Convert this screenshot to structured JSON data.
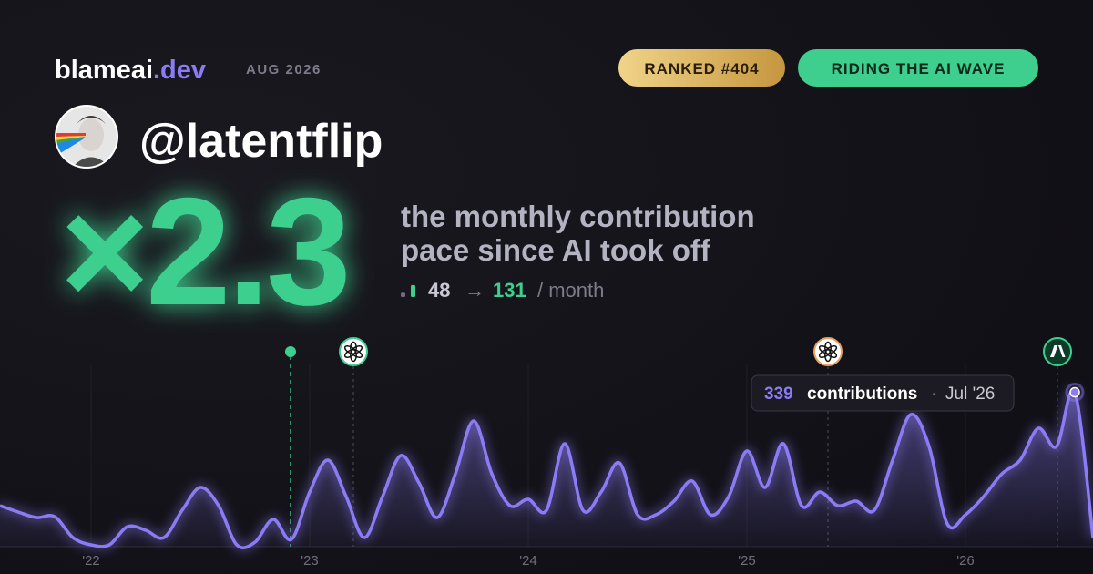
{
  "header": {
    "brand": "blameai",
    "brand_tld": ".dev",
    "date": "AUG 2026",
    "badges": [
      "RANKED #404",
      "RIDING THE AI WAVE"
    ]
  },
  "profile": {
    "handle": "@latentflip"
  },
  "headline": {
    "multiplier": "×2.3",
    "lines": [
      "the monthly contribution",
      "pace since AI took off"
    ],
    "before": 48,
    "arrow": "→",
    "after": 131,
    "unit": "/ month"
  },
  "chart_data": {
    "type": "area",
    "values": [
      90,
      76,
      64,
      66,
      20,
      4,
      4,
      44,
      36,
      20,
      80,
      130,
      90,
      4,
      10,
      60,
      16,
      120,
      190,
      110,
      20,
      110,
      200,
      140,
      64,
      160,
      276,
      160,
      90,
      104,
      80,
      226,
      80,
      120,
      184,
      70,
      70,
      100,
      144,
      70,
      110,
      210,
      130,
      226,
      90,
      120,
      90,
      100,
      80,
      190,
      290,
      220,
      50,
      70,
      110,
      160,
      190,
      260,
      220,
      339,
      20
    ],
    "color": "#8b7cf6",
    "xlim": [
      0,
      60
    ],
    "ylim": [
      0,
      340
    ],
    "xticks": [
      {
        "value": 5,
        "label": "'22"
      },
      {
        "value": 17,
        "label": "'23"
      },
      {
        "value": 29,
        "label": "'24"
      },
      {
        "value": 41,
        "label": "'25"
      },
      {
        "value": 53,
        "label": "'26"
      }
    ],
    "grid": true,
    "events": [
      {
        "x": 15.95,
        "color": "#3ecf8e",
        "icon": "dot"
      },
      {
        "x": 19.4,
        "color": "#3ecf8e",
        "icon": "openai"
      },
      {
        "x": 45.45,
        "color": "#e8a060",
        "icon": "openai"
      },
      {
        "x": 58.05,
        "color": "#3ecf8e",
        "icon": "anthropic"
      }
    ],
    "tooltip": {
      "label": "contributions",
      "separator": "·",
      "date": "Jul '26"
    }
  }
}
